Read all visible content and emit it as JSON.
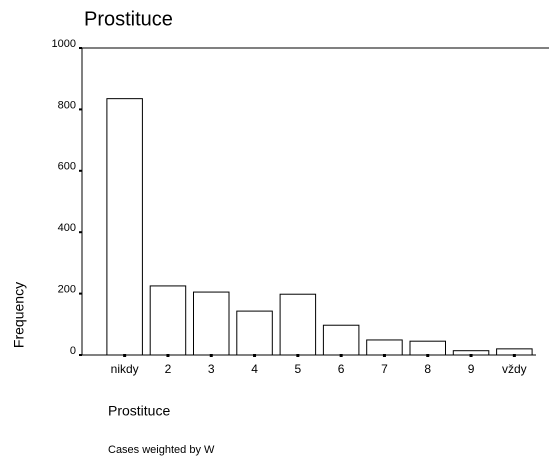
{
  "chart_data": {
    "type": "bar",
    "title": "Prostituce",
    "categories": [
      "nikdy",
      "2",
      "3",
      "4",
      "5",
      "6",
      "7",
      "8",
      "9",
      "vždy"
    ],
    "values": [
      835,
      225,
      205,
      143,
      198,
      97,
      49,
      45,
      14,
      20
    ],
    "color": "#ffffff",
    "xlabel": "Prostituce",
    "ylabel": "Frequency",
    "footnote": "Cases weighted by W",
    "ylim": [
      0,
      1000
    ],
    "yticks": [
      0,
      200,
      400,
      600,
      800,
      1000
    ],
    "grid": false
  }
}
